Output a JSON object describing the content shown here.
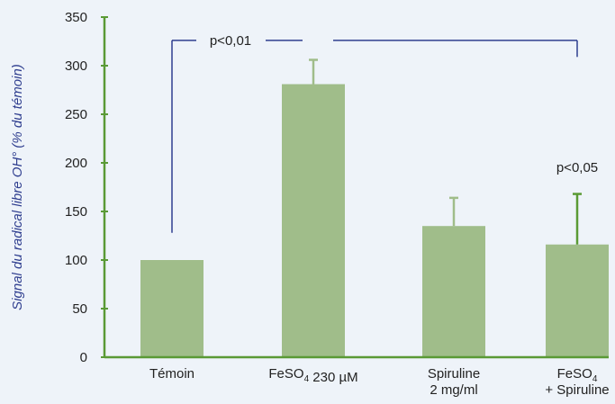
{
  "chart_data": {
    "type": "bar",
    "title": "",
    "ylabel": "Signal du radical libre OH° (% du témoin)",
    "xlabel": "",
    "ylim": [
      0,
      350
    ],
    "yticks": [
      0,
      50,
      100,
      150,
      200,
      250,
      300,
      350
    ],
    "grid": false,
    "categories": [
      {
        "lines": [
          "Témoin"
        ]
      },
      {
        "lines": [
          "FeSO4 230 µM"
        ]
      },
      {
        "lines": [
          "Spiruline",
          "2 mg/ml"
        ]
      },
      {
        "lines": [
          "FeSO4",
          "+ Spiruline"
        ]
      }
    ],
    "values": [
      100,
      281,
      135,
      116
    ],
    "error_upper": [
      null,
      306,
      164,
      168
    ],
    "annotations": [
      {
        "text": "p<0,01",
        "type": "bracket",
        "from": 0,
        "to": 3
      },
      {
        "text": "p<0,05",
        "type": "label",
        "at": 3
      }
    ],
    "colors": {
      "bar": "#a0bd8a",
      "axis": "#5a9a35",
      "error_bar": "#a0bd8a",
      "bracket": "#2f3e8f",
      "error_bar_last": "#5a9a35"
    }
  }
}
